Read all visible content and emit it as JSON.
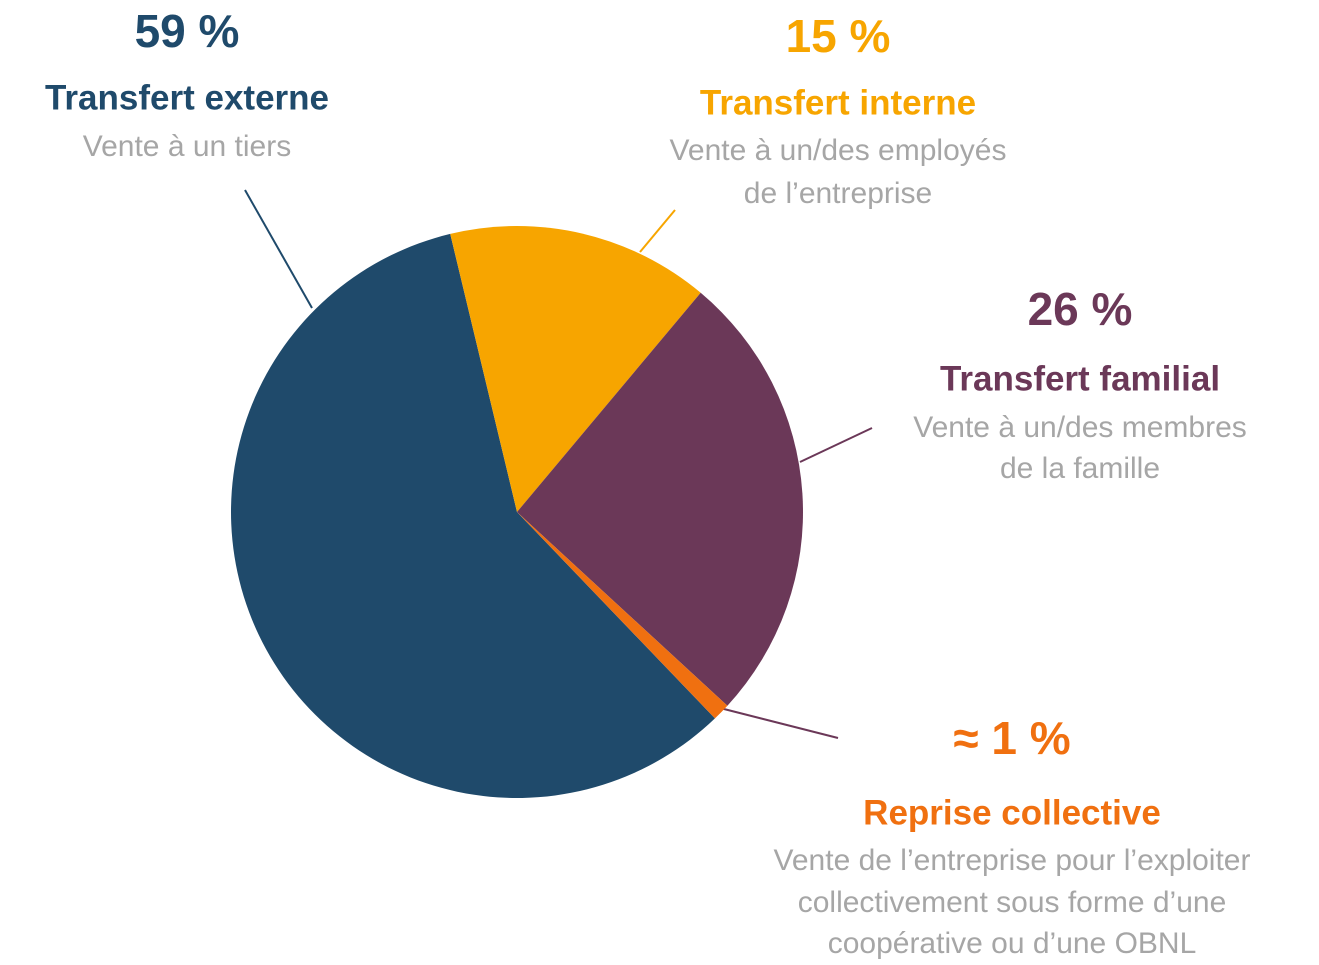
{
  "chart_data": {
    "type": "pie",
    "categories": [
      "Transfert externe",
      "Transfert interne",
      "Transfert familial",
      "Reprise collective"
    ],
    "descriptions": [
      [
        "Vente à un tiers"
      ],
      [
        "Vente à un/des employés",
        "de l’entreprise"
      ],
      [
        "Vente à un/des membres",
        "de la famille"
      ],
      [
        "Vente de l’entreprise pour l’exploiter",
        "collectivement sous forme d’une",
        "coopérative ou d’une OBNL"
      ]
    ],
    "values": [
      59,
      15,
      26,
      1
    ],
    "value_labels": [
      "59 %",
      "15 %",
      "26 %",
      "≈ 1 %"
    ],
    "colors": [
      "#1f4a6b",
      "#f7a500",
      "#6b3858",
      "#f07010"
    ]
  }
}
